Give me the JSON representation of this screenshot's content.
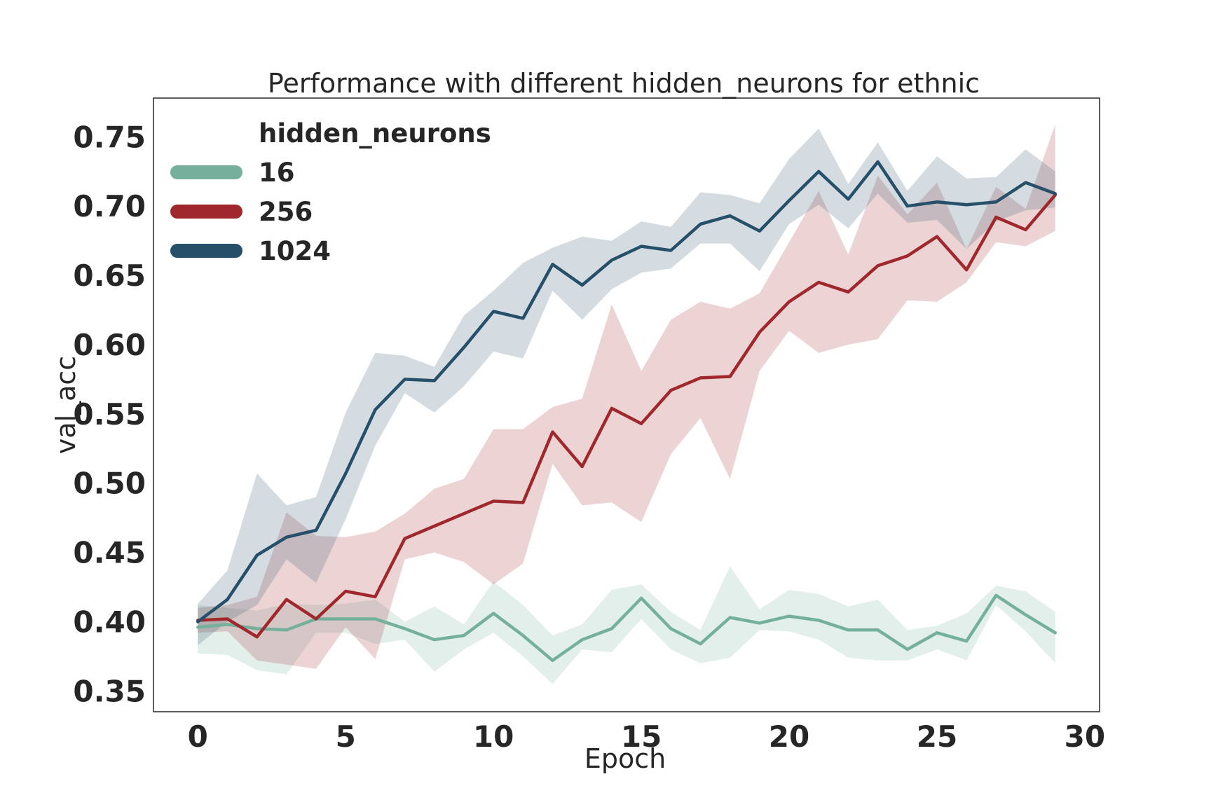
{
  "chart_data": {
    "type": "line",
    "title": "Performance with different hidden_neurons for ethnic",
    "xlabel": "Epoch",
    "ylabel": "val_acc",
    "xlim": [
      -1.5,
      30.5
    ],
    "ylim": [
      0.335,
      0.778
    ],
    "xticks": [
      0,
      5,
      10,
      15,
      20,
      25,
      30
    ],
    "yticks": [
      0.35,
      0.4,
      0.45,
      0.5,
      0.55,
      0.6,
      0.65,
      0.7,
      0.75
    ],
    "grid": false,
    "legend": {
      "title": "hidden_neurons",
      "position": "upper-left"
    },
    "x": [
      0,
      1,
      2,
      3,
      4,
      5,
      6,
      7,
      8,
      9,
      10,
      11,
      12,
      13,
      14,
      15,
      16,
      17,
      18,
      19,
      20,
      21,
      22,
      23,
      24,
      25,
      26,
      27,
      28,
      29
    ],
    "series": [
      {
        "name": "16",
        "color": "#74b09b",
        "values": [
          0.396,
          0.398,
          0.395,
          0.394,
          0.402,
          0.402,
          0.402,
          0.395,
          0.387,
          0.39,
          0.406,
          0.39,
          0.372,
          0.387,
          0.395,
          0.417,
          0.395,
          0.384,
          0.403,
          0.399,
          0.404,
          0.401,
          0.394,
          0.394,
          0.38,
          0.392,
          0.386,
          0.419,
          0.405,
          0.392
        ],
        "lower": [
          0.377,
          0.376,
          0.365,
          0.362,
          0.392,
          0.392,
          0.384,
          0.387,
          0.364,
          0.38,
          0.392,
          0.375,
          0.355,
          0.38,
          0.378,
          0.402,
          0.38,
          0.37,
          0.374,
          0.394,
          0.393,
          0.387,
          0.374,
          0.372,
          0.372,
          0.38,
          0.372,
          0.412,
          0.393,
          0.37
        ],
        "upper": [
          0.412,
          0.41,
          0.408,
          0.413,
          0.412,
          0.413,
          0.416,
          0.4,
          0.411,
          0.398,
          0.429,
          0.412,
          0.39,
          0.398,
          0.423,
          0.427,
          0.407,
          0.394,
          0.44,
          0.409,
          0.423,
          0.42,
          0.411,
          0.416,
          0.394,
          0.397,
          0.406,
          0.426,
          0.422,
          0.407
        ]
      },
      {
        "name": "256",
        "color": "#a0282d",
        "values": [
          0.401,
          0.402,
          0.389,
          0.416,
          0.402,
          0.422,
          0.418,
          0.46,
          0.469,
          0.478,
          0.487,
          0.486,
          0.537,
          0.512,
          0.554,
          0.543,
          0.567,
          0.576,
          0.577,
          0.609,
          0.631,
          0.645,
          0.638,
          0.657,
          0.664,
          0.678,
          0.654,
          0.692,
          0.683,
          0.708
        ],
        "lower": [
          0.392,
          0.393,
          0.372,
          0.369,
          0.366,
          0.396,
          0.373,
          0.445,
          0.45,
          0.443,
          0.427,
          0.442,
          0.514,
          0.484,
          0.486,
          0.472,
          0.521,
          0.547,
          0.503,
          0.581,
          0.61,
          0.594,
          0.6,
          0.604,
          0.632,
          0.631,
          0.645,
          0.674,
          0.671,
          0.682
        ],
        "upper": [
          0.41,
          0.412,
          0.418,
          0.479,
          0.462,
          0.461,
          0.465,
          0.478,
          0.496,
          0.503,
          0.539,
          0.539,
          0.555,
          0.561,
          0.629,
          0.581,
          0.618,
          0.631,
          0.626,
          0.637,
          0.674,
          0.711,
          0.665,
          0.722,
          0.694,
          0.717,
          0.669,
          0.714,
          0.698,
          0.759
        ]
      },
      {
        "name": "1024",
        "color": "#264f6a",
        "values": [
          0.4,
          0.416,
          0.448,
          0.461,
          0.466,
          0.507,
          0.553,
          0.575,
          0.574,
          0.598,
          0.624,
          0.619,
          0.658,
          0.643,
          0.661,
          0.671,
          0.668,
          0.687,
          0.693,
          0.682,
          0.704,
          0.725,
          0.705,
          0.732,
          0.7,
          0.703,
          0.701,
          0.703,
          0.717,
          0.709
        ],
        "lower": [
          0.383,
          0.4,
          0.412,
          0.445,
          0.428,
          0.474,
          0.527,
          0.565,
          0.551,
          0.57,
          0.595,
          0.59,
          0.639,
          0.618,
          0.64,
          0.652,
          0.655,
          0.673,
          0.673,
          0.653,
          0.687,
          0.701,
          0.684,
          0.709,
          0.688,
          0.69,
          0.669,
          0.689,
          0.697,
          0.699
        ],
        "upper": [
          0.413,
          0.437,
          0.507,
          0.484,
          0.49,
          0.551,
          0.594,
          0.592,
          0.584,
          0.621,
          0.639,
          0.659,
          0.67,
          0.678,
          0.675,
          0.689,
          0.685,
          0.71,
          0.708,
          0.702,
          0.734,
          0.756,
          0.716,
          0.746,
          0.711,
          0.736,
          0.72,
          0.721,
          0.741,
          0.725
        ]
      }
    ]
  }
}
